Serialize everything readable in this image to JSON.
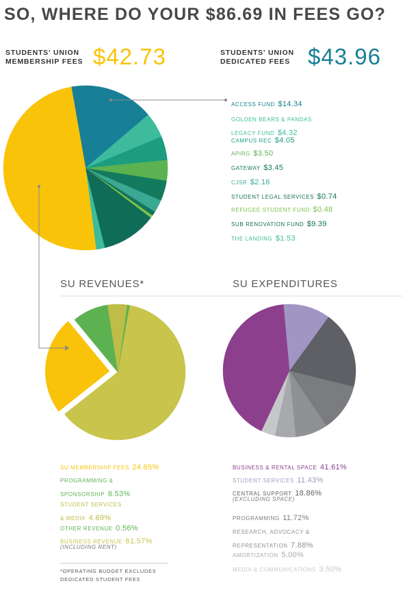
{
  "chart_data": [
    {
      "type": "pie",
      "title": "SO, WHERE DO YOUR $86.69 IN FEES GO?",
      "categories": [
        "STUDENTS' UNION MEMBERSHIP FEES",
        "ACCESS FUND",
        "GOLDEN BEARS & PANDAS LEGACY FUND",
        "CAMPUS REC",
        "APIRG",
        "GATEWAY",
        "CJSR",
        "STUDENT LEGAL SERVICES",
        "REFUGEE STUDENT FUND",
        "SUB RENOVATION FUND",
        "THE LANDING"
      ],
      "values": [
        42.73,
        14.34,
        4.32,
        4.05,
        3.5,
        3.45,
        2.16,
        0.74,
        0.48,
        9.39,
        1.53
      ],
      "value_labels": [
        "$42.73",
        "$14.34",
        "$4.32",
        "$4.05",
        "$3.50",
        "$3.45",
        "$2.16",
        "$0.74",
        "$0.48",
        "$9.39",
        "$1.53"
      ],
      "colors": [
        "#f9c30a",
        "#177f96",
        "#3dbb9c",
        "#1c9d80",
        "#5cb250",
        "#147a5f",
        "#3aa892",
        "#12745a",
        "#7cc04a",
        "#0f6c58",
        "#3dbb9c"
      ],
      "group": {
        "label": "STUDENTS' UNION DEDICATED FEES",
        "total": 43.96,
        "total_label": "$43.96"
      }
    },
    {
      "type": "pie",
      "title": "SU REVENUES*",
      "categories": [
        "SU MEMBERSHIP FEES",
        "PROGRAMMING & SPONSORSHIP",
        "STUDENT SERVICES & MEDIA",
        "OTHER REVENUE",
        "BUSINESS REVENUE"
      ],
      "values": [
        24.65,
        8.53,
        4.69,
        0.56,
        61.57
      ],
      "value_labels": [
        "24.65%",
        "8.53%",
        "4.69%",
        "0.56%",
        "61.57%"
      ],
      "colors": [
        "#f9c30a",
        "#5cb250",
        "#bdbd48",
        "#5cb250",
        "#c8c44c"
      ],
      "annotations": [
        "(INCLUDING RENT)"
      ],
      "footnote": "*OPERATING BUDGET EXCLUDES DEDICATED STUDENT FEES"
    },
    {
      "type": "pie",
      "title": "SU EXPENDITURES",
      "categories": [
        "BUSINESS & RENTAL SPACE",
        "STUDENT SERVICES",
        "CENTRAL SUPPORT",
        "PROGRAMMING",
        "RESEARCH, ADVOCACY & REPRESENTATION",
        "AMORTIZATION",
        "MEDIA & COMMUNICATIONS"
      ],
      "values": [
        41.61,
        11.43,
        18.86,
        11.72,
        7.88,
        5.0,
        3.5
      ],
      "value_labels": [
        "41.61%",
        "11.43%",
        "18.86%",
        "11.72%",
        "7.88%",
        "5.00%",
        "3.50%"
      ],
      "colors": [
        "#8b3f8c",
        "#a195c4",
        "#5f6065",
        "#7b7c80",
        "#909195",
        "#a8a9ac",
        "#c6c7c9"
      ],
      "annotations": [
        "(EXCLUDING SPACE)"
      ]
    }
  ]
}
